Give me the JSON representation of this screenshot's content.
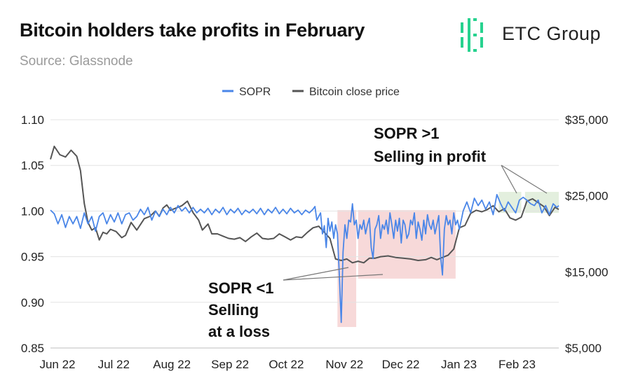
{
  "header": {
    "title": "Bitcoin holders take profits in February",
    "subtitle": "Source: Glassnode",
    "brand": "ETC Group"
  },
  "colors": {
    "sopr": "#4a86e8",
    "price": "#555555",
    "loss_zone": "#f4cccc",
    "profit_zone": "#d9ead3",
    "logo_green": "#27d28f"
  },
  "chart_data": {
    "type": "line",
    "title": "Bitcoin holders take profits in February",
    "x_labels": [
      "Jun 22",
      "Jul 22",
      "Aug 22",
      "Sep 22",
      "Oct 22",
      "Nov 22",
      "Dec 22",
      "Jan 23",
      "Feb 23"
    ],
    "x_range_days": [
      0,
      271
    ],
    "y_left": {
      "label": "SOPR",
      "ticks": [
        "1.10",
        "1.05",
        "1.00",
        "0.95",
        "0.90",
        "0.85"
      ],
      "range": [
        0.85,
        1.1
      ]
    },
    "y_right": {
      "label": "Bitcoin close price",
      "ticks": [
        "$35,000",
        "$25,000",
        "$15,000",
        "$5,000"
      ],
      "range": [
        5000,
        35000
      ]
    },
    "legend": [
      "SOPR",
      "Bitcoin close price"
    ],
    "series": [
      {
        "name": "Bitcoin close price",
        "axis": "right",
        "points": [
          [
            0,
            29800
          ],
          [
            2,
            31500
          ],
          [
            5,
            30400
          ],
          [
            8,
            30100
          ],
          [
            11,
            31000
          ],
          [
            14,
            30200
          ],
          [
            16,
            28300
          ],
          [
            18,
            24000
          ],
          [
            20,
            21500
          ],
          [
            22,
            20500
          ],
          [
            24,
            20800
          ],
          [
            26,
            19200
          ],
          [
            28,
            20200
          ],
          [
            30,
            20000
          ],
          [
            32,
            20600
          ],
          [
            35,
            20300
          ],
          [
            38,
            19500
          ],
          [
            40,
            19800
          ],
          [
            43,
            21500
          ],
          [
            46,
            20500
          ],
          [
            50,
            22000
          ],
          [
            53,
            22300
          ],
          [
            56,
            23000
          ],
          [
            58,
            22300
          ],
          [
            60,
            23400
          ],
          [
            62,
            23800
          ],
          [
            64,
            23100
          ],
          [
            67,
            23400
          ],
          [
            70,
            23700
          ],
          [
            73,
            24300
          ],
          [
            76,
            22800
          ],
          [
            79,
            21800
          ],
          [
            81,
            20500
          ],
          [
            84,
            21300
          ],
          [
            86,
            20000
          ],
          [
            89,
            20000
          ],
          [
            92,
            19700
          ],
          [
            95,
            19400
          ],
          [
            98,
            19300
          ],
          [
            101,
            19500
          ],
          [
            104,
            19000
          ],
          [
            107,
            19600
          ],
          [
            110,
            20100
          ],
          [
            113,
            19400
          ],
          [
            116,
            19300
          ],
          [
            119,
            19400
          ],
          [
            122,
            20000
          ],
          [
            125,
            19600
          ],
          [
            128,
            19200
          ],
          [
            131,
            19600
          ],
          [
            134,
            19500
          ],
          [
            137,
            20200
          ],
          [
            140,
            20800
          ],
          [
            143,
            21000
          ],
          [
            146,
            20200
          ],
          [
            149,
            19400
          ],
          [
            152,
            16700
          ],
          [
            155,
            16500
          ],
          [
            158,
            16700
          ],
          [
            161,
            16200
          ],
          [
            164,
            16400
          ],
          [
            167,
            16200
          ],
          [
            170,
            16800
          ],
          [
            173,
            16800
          ],
          [
            176,
            17000
          ],
          [
            180,
            17100
          ],
          [
            184,
            16900
          ],
          [
            188,
            16800
          ],
          [
            192,
            16700
          ],
          [
            196,
            16500
          ],
          [
            200,
            16600
          ],
          [
            203,
            16900
          ],
          [
            206,
            16600
          ],
          [
            209,
            16900
          ],
          [
            212,
            17200
          ],
          [
            215,
            18000
          ],
          [
            218,
            20800
          ],
          [
            221,
            21100
          ],
          [
            224,
            22700
          ],
          [
            227,
            23100
          ],
          [
            230,
            22900
          ],
          [
            233,
            23200
          ],
          [
            236,
            23700
          ],
          [
            239,
            22900
          ],
          [
            242,
            23300
          ],
          [
            245,
            22100
          ],
          [
            248,
            21800
          ],
          [
            251,
            22200
          ],
          [
            254,
            24300
          ],
          [
            257,
            24600
          ],
          [
            260,
            24100
          ],
          [
            263,
            23600
          ],
          [
            266,
            22400
          ],
          [
            269,
            23500
          ],
          [
            271,
            23200
          ]
        ]
      },
      {
        "name": "SOPR",
        "axis": "left",
        "points": [
          [
            0,
            1.001
          ],
          [
            2,
            0.997
          ],
          [
            4,
            0.986
          ],
          [
            6,
            0.996
          ],
          [
            8,
            0.982
          ],
          [
            10,
            0.994
          ],
          [
            12,
            0.986
          ],
          [
            14,
            0.994
          ],
          [
            16,
            0.981
          ],
          [
            18,
            0.998
          ],
          [
            20,
            0.986
          ],
          [
            22,
            0.994
          ],
          [
            24,
            0.978
          ],
          [
            26,
            0.994
          ],
          [
            28,
            0.998
          ],
          [
            30,
            0.986
          ],
          [
            32,
            0.996
          ],
          [
            34,
            0.988
          ],
          [
            36,
            0.998
          ],
          [
            38,
            0.986
          ],
          [
            40,
            0.996
          ],
          [
            42,
            0.998
          ],
          [
            44,
            0.99
          ],
          [
            46,
            0.994
          ],
          [
            48,
            1.002
          ],
          [
            50,
            0.996
          ],
          [
            52,
            1.004
          ],
          [
            54,
            0.99
          ],
          [
            56,
            1.0
          ],
          [
            58,
            0.994
          ],
          [
            60,
            1.002
          ],
          [
            62,
            0.996
          ],
          [
            64,
            1.004
          ],
          [
            66,
            0.998
          ],
          [
            68,
            1.006
          ],
          [
            70,
            1.0
          ],
          [
            72,
            1.004
          ],
          [
            74,
            0.998
          ],
          [
            76,
            1.004
          ],
          [
            78,
            0.998
          ],
          [
            80,
            1.002
          ],
          [
            82,
            0.998
          ],
          [
            84,
            1.003
          ],
          [
            86,
            0.996
          ],
          [
            88,
            1.002
          ],
          [
            90,
            0.998
          ],
          [
            92,
            1.004
          ],
          [
            94,
            0.996
          ],
          [
            96,
            1.002
          ],
          [
            98,
            0.998
          ],
          [
            100,
            1.003
          ],
          [
            102,
            0.996
          ],
          [
            104,
            1.001
          ],
          [
            106,
            0.998
          ],
          [
            108,
            1.002
          ],
          [
            110,
            0.997
          ],
          [
            112,
            1.003
          ],
          [
            114,
            0.996
          ],
          [
            116,
            1.002
          ],
          [
            118,
            0.998
          ],
          [
            120,
            1.004
          ],
          [
            122,
            0.997
          ],
          [
            124,
            1.002
          ],
          [
            126,
            0.997
          ],
          [
            128,
            1.003
          ],
          [
            130,
            0.998
          ],
          [
            132,
            1.001
          ],
          [
            134,
            0.996
          ],
          [
            136,
            1.001
          ],
          [
            138,
            0.998
          ],
          [
            140,
            1.002
          ],
          [
            141,
            1.005
          ],
          [
            142,
            0.99
          ],
          [
            144,
            0.998
          ],
          [
            145,
            0.975
          ],
          [
            146,
            0.984
          ],
          [
            147,
            0.96
          ],
          [
            148,
            0.992
          ],
          [
            149,
            0.978
          ],
          [
            150,
            0.988
          ],
          [
            151,
            0.97
          ],
          [
            152,
            0.985
          ],
          [
            153,
            0.975
          ],
          [
            154,
            0.93
          ],
          [
            155,
            0.878
          ],
          [
            156,
            0.955
          ],
          [
            157,
            0.985
          ],
          [
            158,
            0.97
          ],
          [
            159,
            0.99
          ],
          [
            160,
            0.988
          ],
          [
            161,
            1.008
          ],
          [
            162,
            0.985
          ],
          [
            163,
            0.99
          ],
          [
            164,
            0.97
          ],
          [
            165,
            0.985
          ],
          [
            166,
            0.98
          ],
          [
            167,
            0.99
          ],
          [
            168,
            0.975
          ],
          [
            169,
            0.985
          ],
          [
            170,
            0.992
          ],
          [
            171,
            0.96
          ],
          [
            172,
            0.948
          ],
          [
            173,
            0.98
          ],
          [
            174,
            0.985
          ],
          [
            175,
            0.995
          ],
          [
            176,
            0.97
          ],
          [
            177,
            0.985
          ],
          [
            178,
            0.98
          ],
          [
            179,
            0.99
          ],
          [
            180,
            0.975
          ],
          [
            181,
            0.998
          ],
          [
            182,
            0.985
          ],
          [
            183,
            0.97
          ],
          [
            184,
            0.99
          ],
          [
            185,
            0.978
          ],
          [
            186,
            0.992
          ],
          [
            187,
            0.965
          ],
          [
            188,
            0.99
          ],
          [
            189,
            0.985
          ],
          [
            190,
            0.97
          ],
          [
            191,
            0.975
          ],
          [
            192,
            0.99
          ],
          [
            193,
            0.985
          ],
          [
            194,
            0.998
          ],
          [
            195,
            0.97
          ],
          [
            196,
            0.988
          ],
          [
            197,
            0.98
          ],
          [
            198,
            0.968
          ],
          [
            199,
            0.99
          ],
          [
            200,
            0.975
          ],
          [
            201,
            0.996
          ],
          [
            202,
            0.985
          ],
          [
            203,
            0.98
          ],
          [
            204,
            0.99
          ],
          [
            205,
            0.975
          ],
          [
            206,
            0.985
          ],
          [
            207,
            0.995
          ],
          [
            208,
            0.95
          ],
          [
            209,
            0.93
          ],
          [
            210,
            0.98
          ],
          [
            211,
            0.995
          ],
          [
            212,
            0.985
          ],
          [
            213,
            0.99
          ],
          [
            214,
            0.975
          ],
          [
            215,
            0.998
          ],
          [
            216,
            0.985
          ],
          [
            217,
            0.99
          ],
          [
            218,
            0.98
          ],
          [
            220,
            1.0
          ],
          [
            222,
            1.01
          ],
          [
            224,
            0.998
          ],
          [
            226,
            1.014
          ],
          [
            228,
            1.006
          ],
          [
            230,
            1.012
          ],
          [
            232,
            1.002
          ],
          [
            234,
            1.01
          ],
          [
            236,
            0.996
          ],
          [
            238,
            1.018
          ],
          [
            240,
            1.008
          ],
          [
            242,
            1.0
          ],
          [
            244,
            1.01
          ],
          [
            246,
            1.004
          ],
          [
            248,
            0.998
          ],
          [
            250,
            1.012
          ],
          [
            252,
            1.015
          ],
          [
            254,
            1.012
          ],
          [
            256,
            1.008
          ],
          [
            258,
            1.006
          ],
          [
            260,
            1.012
          ],
          [
            262,
            0.998
          ],
          [
            264,
            1.006
          ],
          [
            266,
            0.996
          ],
          [
            268,
            1.008
          ],
          [
            270,
            1.004
          ],
          [
            271,
            1.006
          ]
        ]
      }
    ],
    "annotations": [
      {
        "text_lines": [
          "SOPR >1",
          "Selling in profit"
        ],
        "type": "profit"
      },
      {
        "text_lines": [
          "SOPR <1",
          "Selling",
          "at a loss"
        ],
        "type": "loss"
      }
    ]
  }
}
